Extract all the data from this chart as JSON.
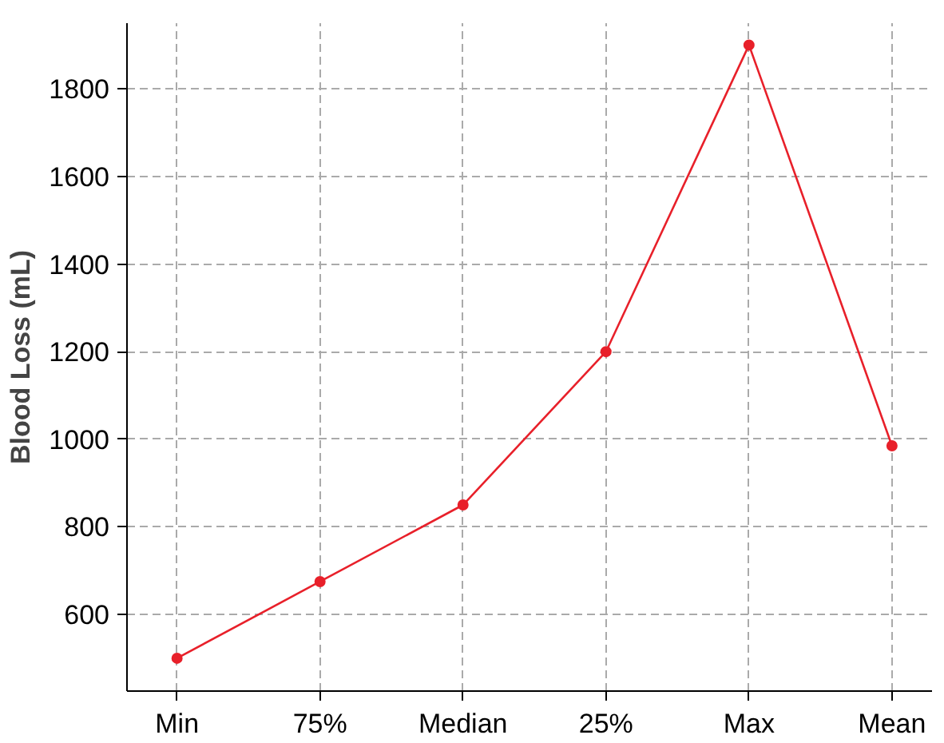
{
  "chart_data": {
    "type": "line",
    "ylabel": "Blood Loss (mL)",
    "categories": [
      "Min",
      "75%",
      "Median",
      "25%",
      "Max",
      "Mean"
    ],
    "series": [
      {
        "color": "#e8202a",
        "values": [
          500,
          675,
          850,
          1200,
          1900,
          985
        ]
      }
    ],
    "ylim": [
      425,
      1950
    ],
    "yticks": [
      600,
      800,
      1000,
      1200,
      1400,
      1600,
      1800
    ],
    "grid": true,
    "marker": "circle",
    "line_style": "solid"
  }
}
